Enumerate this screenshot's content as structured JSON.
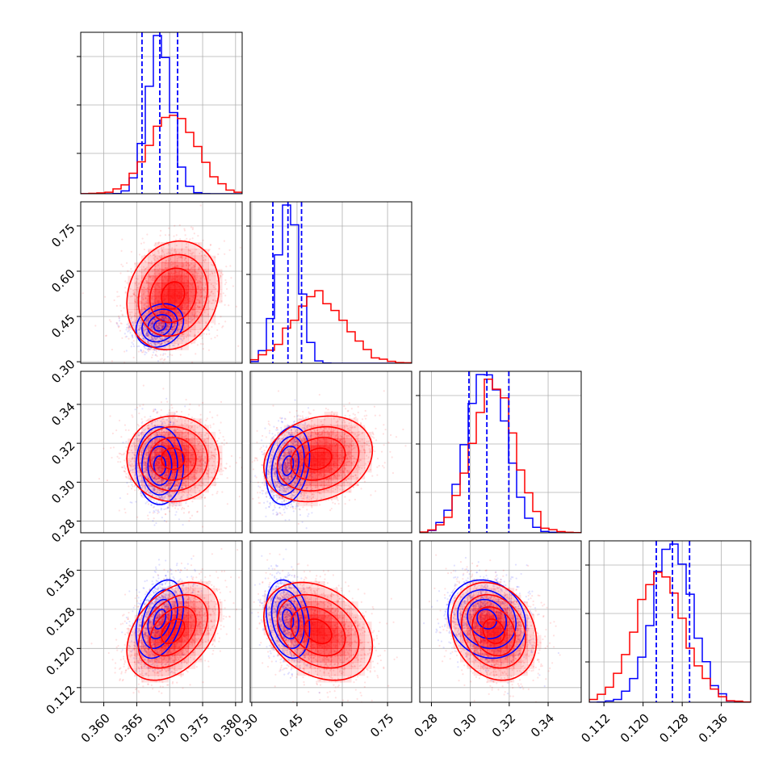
{
  "chart_data": {
    "type": "corner",
    "grid": true,
    "legend": "none",
    "colors": {
      "series_a": "#0000ff",
      "series_b": "#ff0000"
    },
    "parameters": [
      {
        "ticks": [
          0.36,
          0.365,
          0.37,
          0.375,
          0.38
        ],
        "tick_labels": [
          "0.360",
          "0.365",
          "0.370",
          "0.375",
          "0.380"
        ],
        "range": [
          0.3565,
          0.381
        ]
      },
      {
        "ticks": [
          0.3,
          0.45,
          0.6,
          0.75
        ],
        "tick_labels": [
          "0.30",
          "0.45",
          "0.60",
          "0.75"
        ],
        "range": [
          0.295,
          0.83
        ]
      },
      {
        "ticks": [
          0.28,
          0.3,
          0.32,
          0.34
        ],
        "tick_labels": [
          "0.28",
          "0.30",
          "0.32",
          "0.34"
        ],
        "range": [
          0.274,
          0.357
        ]
      },
      {
        "ticks": [
          0.112,
          0.12,
          0.128,
          0.136
        ],
        "tick_labels": [
          "0.112",
          "0.120",
          "0.128",
          "0.136"
        ],
        "range": [
          0.109,
          0.142
        ]
      }
    ],
    "series": [
      {
        "color": "#0000ff",
        "means": [
          0.3685,
          0.42,
          0.3085,
          0.126
        ],
        "stds": [
          0.0018,
          0.036,
          0.01,
          0.004
        ],
        "correlations": {
          "1_0": 0.2,
          "2_0": 0.0,
          "2_1": 0.25,
          "3_0": 0.35,
          "3_1": -0.25,
          "3_2": -0.15
        },
        "quantiles_marked": [
          [
            0.3658,
            0.3685,
            0.3712
          ],
          [
            0.37,
            0.42,
            0.465
          ],
          [
            0.2993,
            0.3085,
            0.3198
          ],
          [
            0.1227,
            0.126,
            0.1295
          ]
        ]
      },
      {
        "color": "#ff0000",
        "means": [
          0.3705,
          0.52,
          0.312,
          0.1235
        ],
        "stds": [
          0.0035,
          0.09,
          0.011,
          0.005
        ],
        "correlations": {
          "1_0": 0.15,
          "2_0": 0.0,
          "2_1": 0.2,
          "3_0": 0.4,
          "3_1": -0.3,
          "3_2": -0.2
        }
      }
    ]
  }
}
